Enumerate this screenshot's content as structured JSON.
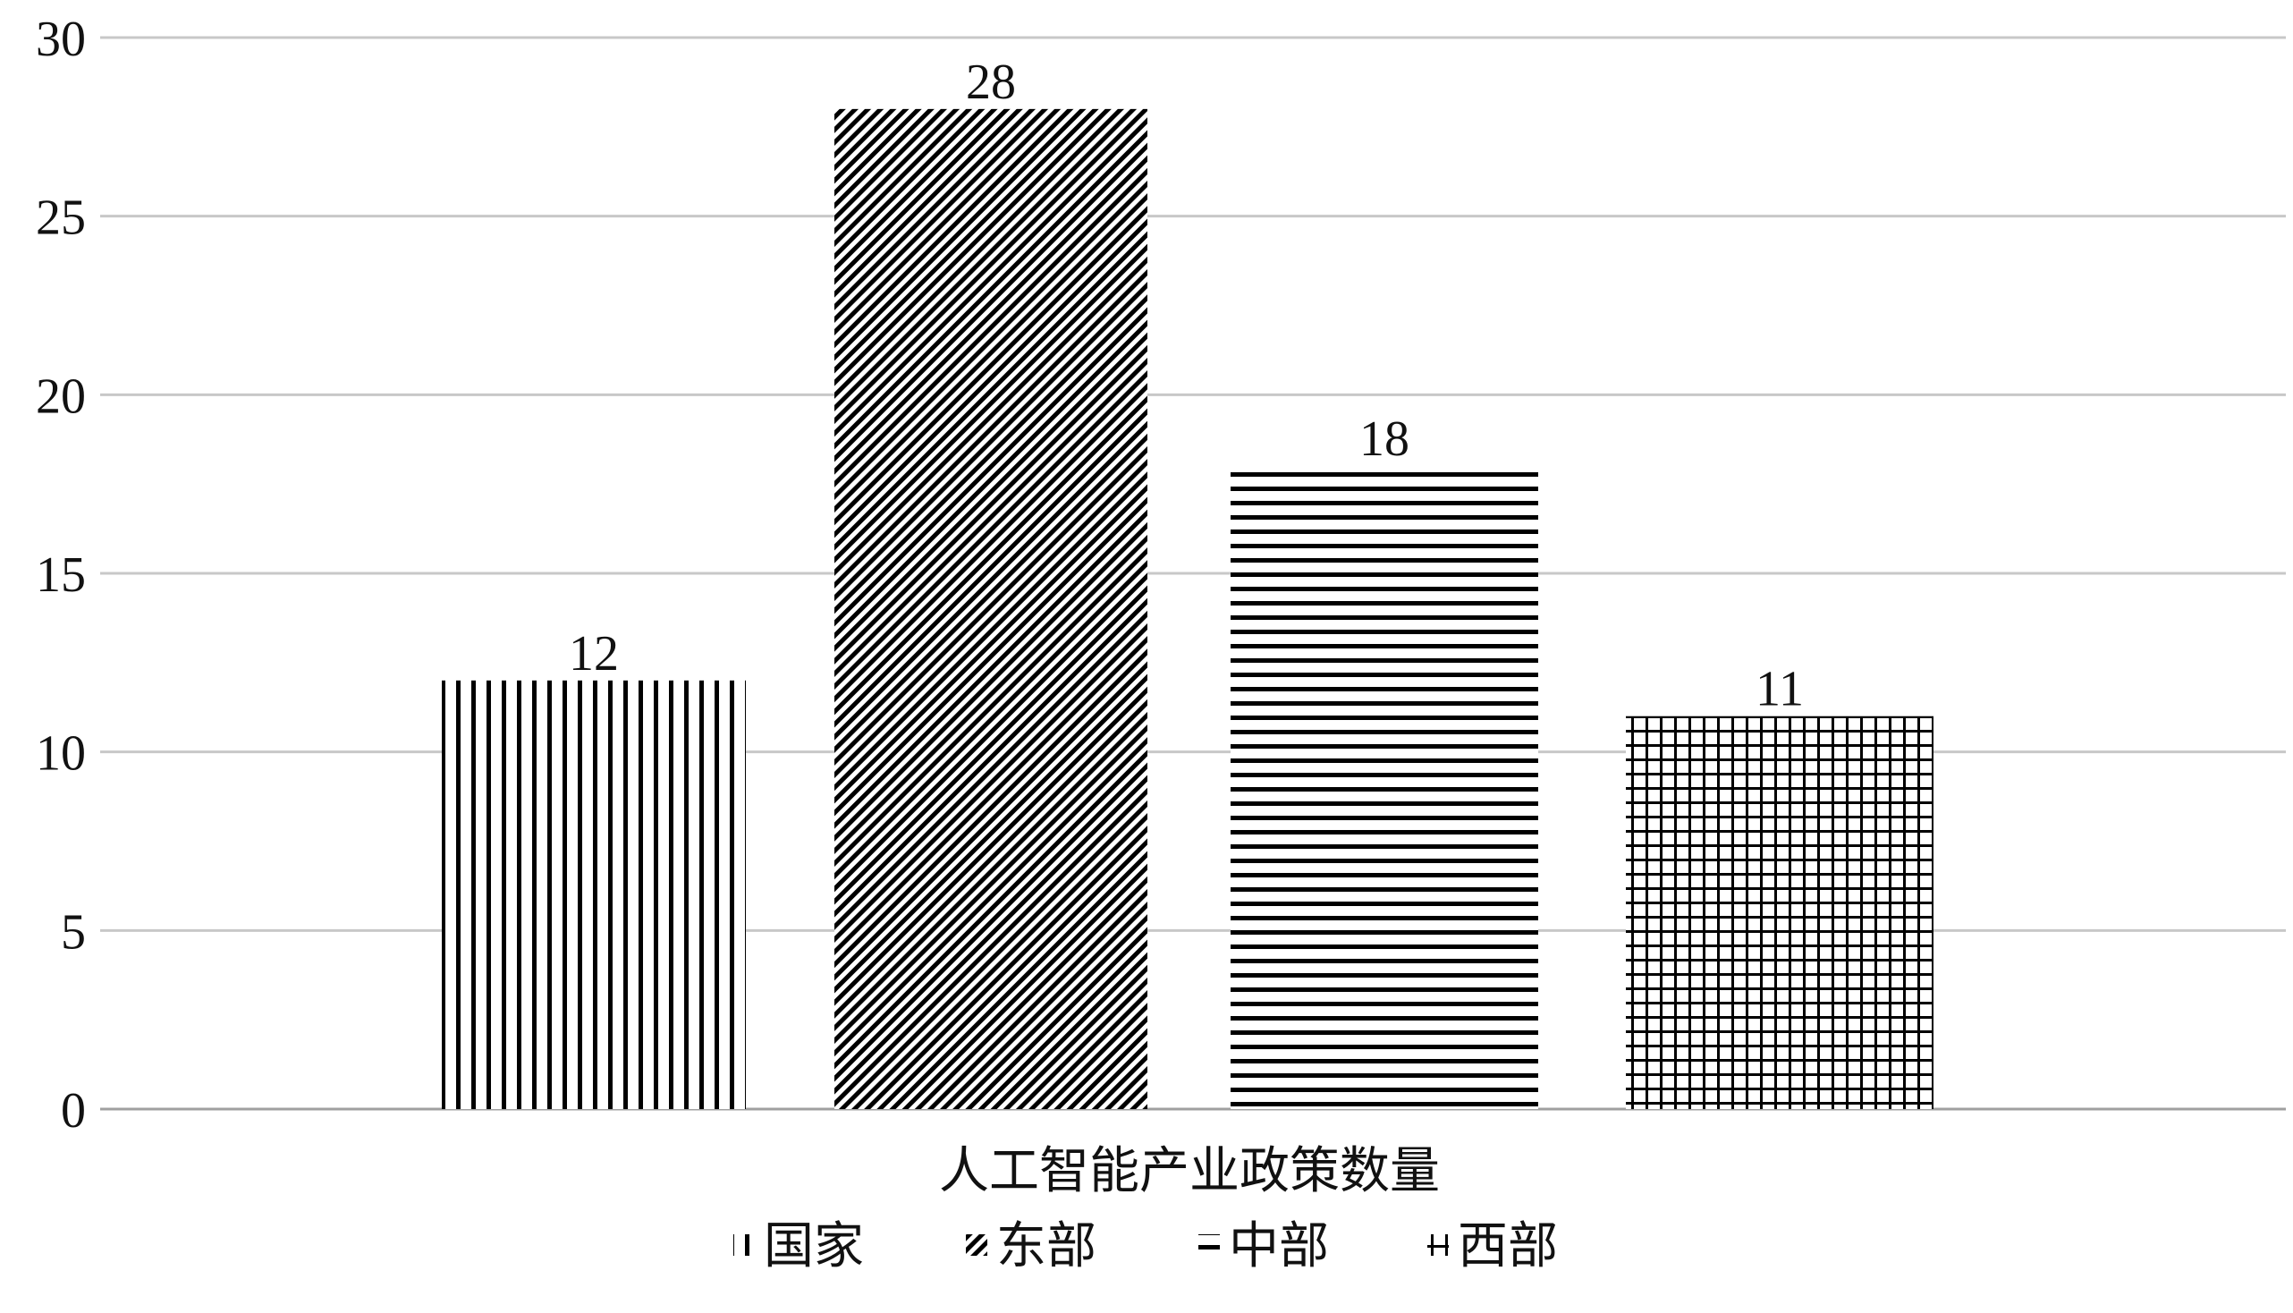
{
  "chart_data": {
    "type": "bar",
    "title": "",
    "xlabel": "人工智能产业政策数量",
    "ylabel": "",
    "ylim": [
      0,
      30
    ],
    "yticks": [
      0,
      5,
      10,
      15,
      20,
      25,
      30
    ],
    "grid": true,
    "legend_position": "bottom",
    "categories": [
      "人工智能产业政策数量"
    ],
    "series": [
      {
        "name": "国家",
        "values": [
          12
        ],
        "pattern": "vertical"
      },
      {
        "name": "东部",
        "values": [
          28
        ],
        "pattern": "diagonal"
      },
      {
        "name": "中部",
        "values": [
          18
        ],
        "pattern": "horizontal"
      },
      {
        "name": "西部",
        "values": [
          11
        ],
        "pattern": "grid"
      }
    ]
  },
  "colors": {
    "bar_ink": "#000000",
    "grid": "#c8c8c8",
    "axis": "#a0a0a0",
    "text": "#111111"
  }
}
